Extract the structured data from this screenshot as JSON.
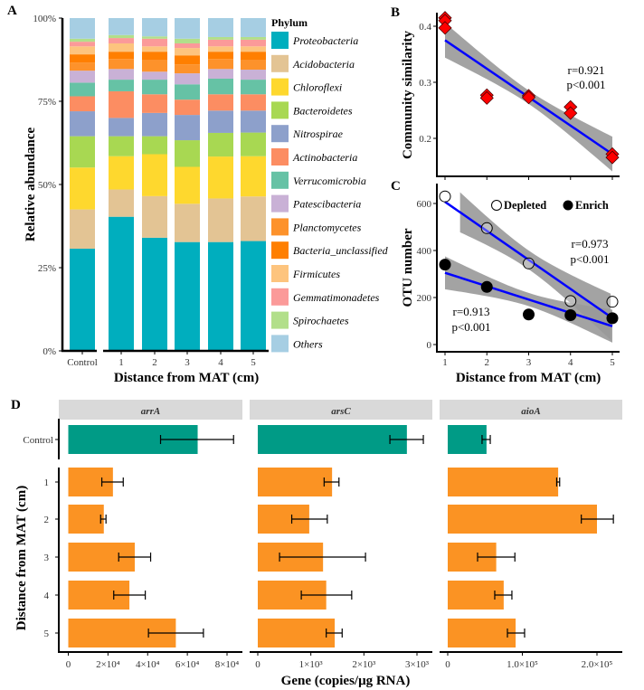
{
  "chart_data": [
    {
      "panel": "A",
      "type": "bar",
      "stacked": true,
      "categories": [
        "Control",
        "1",
        "2",
        "3",
        "4",
        "5"
      ],
      "xlabel": "Distance from MAT (cm)",
      "ylabel": "Relative abundance",
      "yticks": [
        "0%",
        "25%",
        "50%",
        "75%",
        "100%"
      ],
      "ylim": [
        0,
        100
      ],
      "legend_title": "Phylum",
      "legend_position": "right",
      "series": [
        {
          "name": "Proteobacteria",
          "color": "#00AEBE",
          "values": [
            30.7,
            40.3,
            34.0,
            32.7,
            32.7,
            33.0
          ]
        },
        {
          "name": "Acidobacteria",
          "color": "#E3C494",
          "values": [
            11.8,
            8.2,
            12.5,
            11.5,
            13.1,
            13.4
          ]
        },
        {
          "name": "Chloroflexi",
          "color": "#FED82E",
          "values": [
            12.6,
            10.0,
            12.6,
            11.1,
            12.6,
            12.1
          ]
        },
        {
          "name": "Bacteroidetes",
          "color": "#A8D852",
          "values": [
            9.4,
            6.0,
            5.4,
            8.0,
            7.1,
            7.1
          ]
        },
        {
          "name": "Nitrospirae",
          "color": "#8DA0CB",
          "values": [
            7.5,
            5.5,
            7.0,
            7.6,
            6.7,
            6.6
          ]
        },
        {
          "name": "Actinobacteria",
          "color": "#FC8D62",
          "values": [
            4.5,
            8.0,
            5.6,
            4.6,
            4.9,
            4.9
          ]
        },
        {
          "name": "Verrucomicrobia",
          "color": "#66C2A5",
          "values": [
            4.1,
            3.5,
            4.4,
            4.6,
            4.7,
            4.4
          ]
        },
        {
          "name": "Patescibacteria",
          "color": "#C9B1D6",
          "values": [
            3.6,
            3.2,
            2.4,
            3.3,
            2.9,
            3.0
          ]
        },
        {
          "name": "Planctomycetes",
          "color": "#FD922B",
          "values": [
            2.4,
            3.0,
            3.6,
            2.7,
            3.0,
            3.0
          ]
        },
        {
          "name": "Bacteria_unclassified",
          "color": "#FF7F00",
          "values": [
            2.5,
            2.2,
            2.4,
            2.7,
            2.2,
            2.4
          ]
        },
        {
          "name": "Firmicutes",
          "color": "#FDC47E",
          "values": [
            2.4,
            2.5,
            1.6,
            2.2,
            1.6,
            1.6
          ]
        },
        {
          "name": "Gemmatimonadetes",
          "color": "#FB9A99",
          "values": [
            1.4,
            1.6,
            2.3,
            1.4,
            2.0,
            2.0
          ]
        },
        {
          "name": "Spirochaetes",
          "color": "#B2DF8A",
          "values": [
            0.9,
            0.9,
            0.7,
            1.4,
            0.8,
            0.8
          ]
        },
        {
          "name": "Others",
          "color": "#A6CEE3",
          "values": [
            6.2,
            5.1,
            5.5,
            6.2,
            5.7,
            5.7
          ]
        }
      ]
    },
    {
      "panel": "B",
      "type": "scatter",
      "ylabel": "Community similarity",
      "yticks": [
        "0.2",
        "0.3",
        "0.4"
      ],
      "xticks": [
        1,
        2,
        3,
        4,
        5
      ],
      "ylim": [
        0.14,
        0.42
      ],
      "marker": "diamond",
      "marker_color": "#FF0000",
      "points": [
        {
          "x": 1,
          "y": 0.415
        },
        {
          "x": 1,
          "y": 0.41
        },
        {
          "x": 1,
          "y": 0.397
        },
        {
          "x": 2,
          "y": 0.277
        },
        {
          "x": 2,
          "y": 0.272
        },
        {
          "x": 3,
          "y": 0.276
        },
        {
          "x": 3,
          "y": 0.273
        },
        {
          "x": 4,
          "y": 0.256
        },
        {
          "x": 4,
          "y": 0.245
        },
        {
          "x": 5,
          "y": 0.172
        },
        {
          "x": 5,
          "y": 0.166
        }
      ],
      "fit": {
        "y_at_x1": 0.375,
        "y_at_x5": 0.172,
        "color": "#0000FF"
      },
      "annotation": [
        "r=0.921",
        "p<0.001"
      ]
    },
    {
      "panel": "C",
      "type": "scatter",
      "xlabel": "Distance from MAT (cm)",
      "ylabel": "OTU number",
      "xticks": [
        "1",
        "2",
        "3",
        "4",
        "5"
      ],
      "yticks": [
        "0",
        "200",
        "400",
        "600"
      ],
      "ylim": [
        0,
        660
      ],
      "legend_position": "top-right",
      "series": [
        {
          "name": "Depleted",
          "marker": "open-circle",
          "x": [
            1,
            2,
            3,
            4,
            5
          ],
          "y": [
            630,
            495,
            345,
            185,
            182
          ],
          "fit": {
            "y_at_x1": 607,
            "y_at_x5": 113
          },
          "annotation": [
            "r=0.973",
            "p<0.001"
          ]
        },
        {
          "name": "Enrich",
          "marker": "filled-circle",
          "x": [
            1,
            2,
            3,
            4,
            5
          ],
          "y": [
            340,
            245,
            128,
            125,
            112
          ],
          "fit": {
            "y_at_x1": 305,
            "y_at_x5": 78
          },
          "annotation": [
            "r=0.913",
            "p<0.001"
          ]
        }
      ]
    },
    {
      "panel": "D",
      "type": "bar",
      "orientation": "horizontal",
      "categories": [
        "Control",
        "1",
        "2",
        "3",
        "4",
        "5"
      ],
      "xlabel": "Gene (copies/μg RNA)",
      "ylabel": "Distance from MAT (cm)",
      "colors": {
        "control": "#009B86",
        "treatment": "#FB9323",
        "strip": "#D9D9D9"
      },
      "facets": [
        {
          "name": "arrA",
          "xmax_tick": 80000,
          "xticks": [
            "0",
            "2×10⁴",
            "4×10⁴",
            "6×10⁴",
            "8×10⁴"
          ],
          "values": [
            65200,
            22500,
            17900,
            33500,
            30800,
            54200
          ],
          "err_low": [
            46500,
            16900,
            16300,
            25400,
            22900,
            40400
          ],
          "err_high": [
            83300,
            27700,
            19000,
            41500,
            38800,
            68100
          ]
        },
        {
          "name": "arsC",
          "xmax_tick": 3000,
          "xticks": [
            "0",
            "1×10³",
            "2×10³",
            "3×10³"
          ],
          "values": [
            2810,
            1400,
            970,
            1230,
            1290,
            1450
          ],
          "err_low": [
            2490,
            1250,
            640,
            410,
            820,
            1290
          ],
          "err_high": [
            3120,
            1530,
            1310,
            2030,
            1770,
            1590
          ]
        },
        {
          "name": "aioA",
          "xmax_tick": 200000,
          "xticks": [
            "0",
            "1.0×10⁵",
            "2.0×10⁵"
          ],
          "values": [
            52000,
            148000,
            200000,
            65000,
            75000,
            91000
          ],
          "err_low": [
            46000,
            146000,
            179000,
            40000,
            63000,
            80000
          ],
          "err_high": [
            57000,
            150000,
            222000,
            90000,
            86000,
            103000
          ]
        }
      ]
    }
  ],
  "panel_labels": [
    "A",
    "B",
    "C",
    "D"
  ]
}
